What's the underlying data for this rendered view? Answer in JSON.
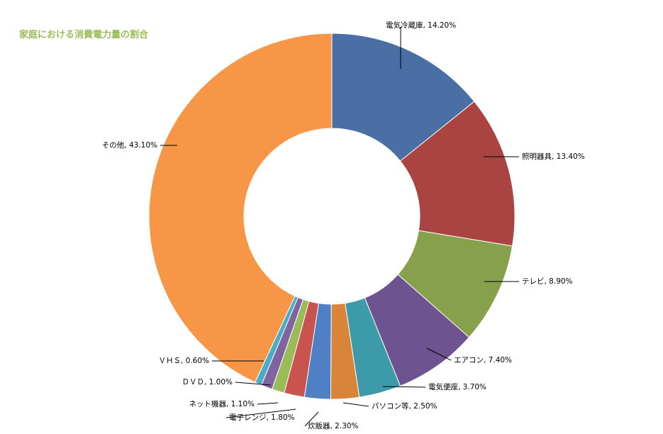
{
  "chart_data": {
    "type": "pie",
    "title": "家庭における消費電力量の割合",
    "categories": [
      "電気冷蔵庫",
      "照明器具",
      "テレビ",
      "エアコン",
      "電気便座",
      "パソコン等",
      "炊飯器",
      "電子レンジ",
      "ネット機器",
      "ＤＶＤ",
      "ＶＨＳ",
      "その他"
    ],
    "values": [
      14.2,
      13.4,
      8.9,
      7.4,
      3.7,
      2.5,
      2.3,
      1.8,
      1.1,
      1.0,
      0.6,
      43.1
    ],
    "value_labels": [
      "14.20%",
      "13.40%",
      "8.90%",
      "7.40%",
      "3.70%",
      "2.50%",
      "2.30%",
      "1.80%",
      "1.10%",
      "1.00%",
      "0.60%",
      "43.10%"
    ],
    "colors": [
      "#4a6fa5",
      "#a94442",
      "#86a04b",
      "#6e5391",
      "#3d9aa8",
      "#d9843b",
      "#4f7fc4",
      "#c9534f",
      "#9bbb59",
      "#8064a2",
      "#4bacc6",
      "#f79646"
    ],
    "legend": "none",
    "donut": true
  }
}
